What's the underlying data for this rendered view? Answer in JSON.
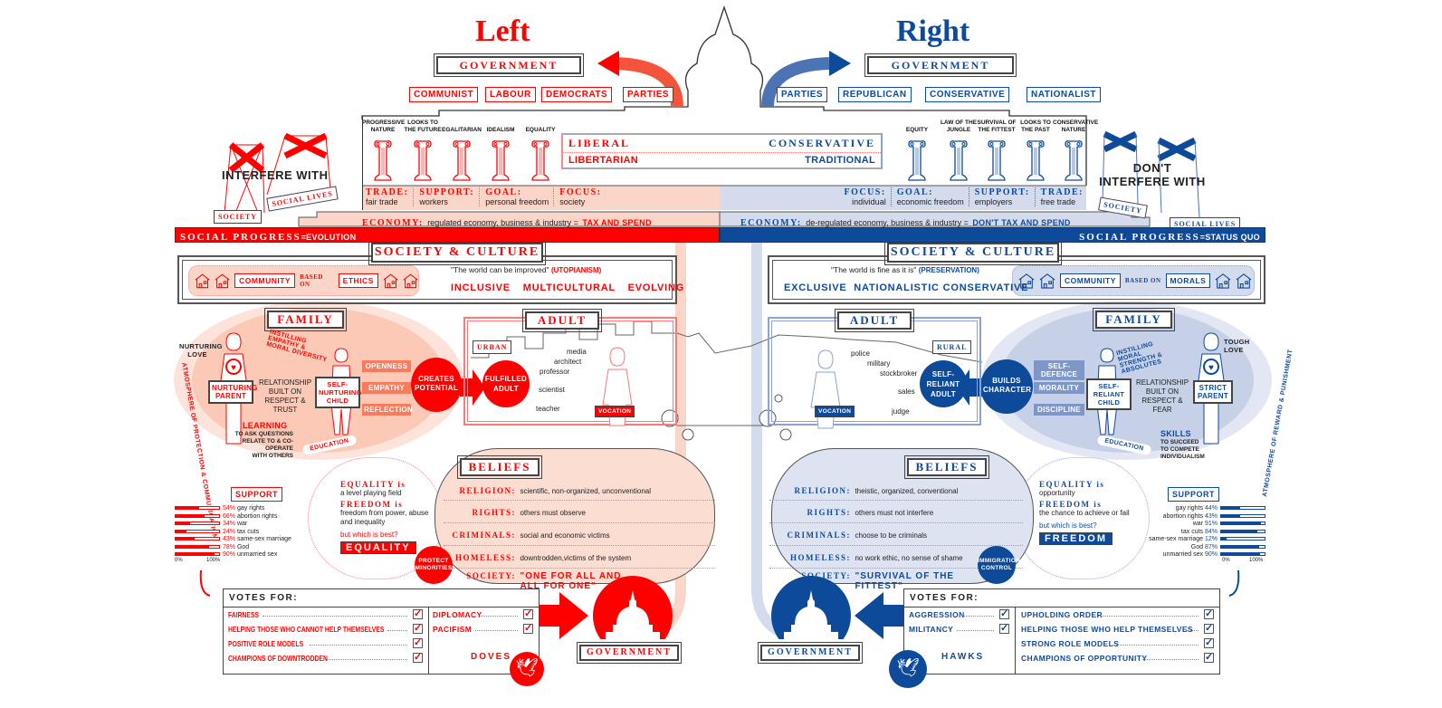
{
  "colors": {
    "left": "#ff0000",
    "left_light": "#fbd5c7",
    "right": "#0d4a9a",
    "right_light": "#d3dbec"
  },
  "left": {
    "title": "Left",
    "government": "GOVERNMENT",
    "parties": [
      "COMMUNIST",
      "LABOUR",
      "DEMOCRATS",
      "PARTIES"
    ],
    "pillars": [
      "PROGRESSIVE NATURE",
      "LOOKS TO THE FUTURE",
      "EGALITARIAN",
      "IDEALISM",
      "EQUALITY"
    ],
    "ideology": [
      "LIBERAL",
      "LIBERTARIAN"
    ],
    "stats": [
      {
        "k": "TRADE:",
        "v": "fair trade"
      },
      {
        "k": "SUPPORT:",
        "v": "workers"
      },
      {
        "k": "GOAL:",
        "v": "personal freedom"
      },
      {
        "k": "FOCUS:",
        "v": "society"
      }
    ],
    "economy_k": "ECONOMY:",
    "economy_v": "regulated economy, business & industry =",
    "economy_tag": "TAX AND SPEND",
    "interfere": "INTERFERE WITH",
    "society_tag": "SOCIETY",
    "social_lives_tag": "SOCIAL LIVES",
    "progress_k": "SOCIAL PROGRESS",
    "progress_v": "=EVOLUTION",
    "society_culture": "SOCIETY & CULTURE",
    "community": "COMMUNITY",
    "based_on": "BASED ON",
    "basis": "ETHICS",
    "quote": "\"The world can be improved\"",
    "quote_tag": "(UTOPIANISM)",
    "traits": [
      "INCLUSIVE",
      "MULTICULTURAL",
      "EVOLVING"
    ],
    "family": "FAMILY",
    "love": "NURTURING LOVE",
    "instilling": "INSTILLING EMPATHY & MORAL DIVERSITY",
    "relationship": "RELATIONSHIP BUILT ON RESPECT & TRUST",
    "parent": "NURTURING PARENT",
    "child": "SELF-NURTURING CHILD",
    "arrows": [
      "OPENNESS",
      "EMPATHY",
      "REFLECTION"
    ],
    "burst": "CREATES POTENTIAL",
    "learning": "LEARNING",
    "learning_sub": [
      "TO ASK QUESTIONS",
      "RELATE TO & CO-OPERATE",
      "WITH OTHERS"
    ],
    "education": "EDUCATION",
    "atmosphere": "ATMOSPHERE OF PROTECTION & COMMUNICATION",
    "adult": "ADULT",
    "setting": "URBAN",
    "adult_type": "FULFILLED ADULT",
    "jobs": [
      "media",
      "architect",
      "professor",
      "scientist",
      "teacher"
    ],
    "vocation": "VOCATION",
    "beliefs": "BELIEFS",
    "belief_rows": [
      {
        "k": "RELIGION:",
        "v": "scientific, non-organized, unconventional"
      },
      {
        "k": "RIGHTS:",
        "v": "others must observe"
      },
      {
        "k": "CRIMINALS:",
        "v": "social and economic victims"
      },
      {
        "k": "HOMELESS:",
        "v": "downtrodden,victims of the system"
      }
    ],
    "society_k": "SOCIETY:",
    "society_v": "\"ONE FOR ALL AND ALL FOR ONE\"",
    "eq_k": "EQUALITY is",
    "eq_v": "a level playing field",
    "fr_k": "FREEDOM is",
    "fr_v": "freedom from power, abuse and inequality",
    "which": "but which is best?",
    "best": "EQUALITY",
    "badge": "PROTECT MINORITIES",
    "support": "SUPPORT",
    "support_items": [
      {
        "pct": 54,
        "label": "54%",
        "name": "gay rights"
      },
      {
        "pct": 66,
        "label": "66%",
        "name": "abortion rights"
      },
      {
        "pct": 34,
        "label": "34%",
        "name": "war"
      },
      {
        "pct": 24,
        "label": "24%",
        "name": "tax cuts"
      },
      {
        "pct": 43,
        "label": "43%",
        "name": "same-sex marriage"
      },
      {
        "pct": 78,
        "label": "78%",
        "name": "God"
      },
      {
        "pct": 90,
        "label": "90%",
        "name": "unmarried sex"
      }
    ],
    "axis": [
      "0%",
      "100%"
    ],
    "votes_for": "VOTES FOR:",
    "votes_a": [
      "FAIRNESS",
      "HELPING THOSE WHO CANNOT HELP THEMSELVES",
      "POSITIVE ROLE MODELS",
      "CHAMPIONS OF DOWNTRODDEN"
    ],
    "votes_b": [
      "DIPLOMACY",
      "PACIFISM"
    ],
    "bird": "DOVES",
    "bottom_gov": "GOVERNMENT"
  },
  "right": {
    "title": "Right",
    "government": "GOVERNMENT",
    "parties": [
      "PARTIES",
      "REPUBLICAN",
      "CONSERVATIVE",
      "NATIONALIST"
    ],
    "pillars": [
      "EQUITY",
      "LAW OF THE JUNGLE",
      "SURVIVAL OF THE FITTEST",
      "LOOKS TO THE PAST",
      "CONSERVATIVE NATURE"
    ],
    "ideology": [
      "CONSERVATIVE",
      "TRADITIONAL"
    ],
    "stats": [
      {
        "k": "FOCUS:",
        "v": "individual"
      },
      {
        "k": "GOAL:",
        "v": "economic freedom"
      },
      {
        "k": "SUPPORT:",
        "v": "employers"
      },
      {
        "k": "TRADE:",
        "v": "free trade"
      }
    ],
    "economy_k": "ECONOMY:",
    "economy_v": "de-regulated economy, business & industry =",
    "economy_tag": "DON'T TAX AND SPEND",
    "interfere": "DON'T INTERFERE WITH",
    "society_tag": "SOCIETY",
    "social_lives_tag": "SOCIAL LIVES",
    "progress_k": "SOCIAL PROGRESS",
    "progress_v": "=STATUS QUO",
    "society_culture": "SOCIETY & CULTURE",
    "community": "COMMUNITY",
    "based_on": "BASED ON",
    "basis": "MORALS",
    "quote": "\"The world is fine as it is\"",
    "quote_tag": "(PRESERVATION)",
    "traits": [
      "EXCLUSIVE",
      "NATIONALISTIC",
      "CONSERVATIVE"
    ],
    "family": "FAMILY",
    "love": "TOUGH LOVE",
    "instilling": "INSTILLING MORAL STRENGTH & ABSOLUTES",
    "relationship": "RELATIONSHIP BUILT ON RESPECT & FEAR",
    "parent": "STRICT PARENT",
    "child": "SELF-RELIANT CHILD",
    "arrows": [
      "SELF-DEFENCE",
      "MORALITY",
      "DISCIPLINE"
    ],
    "burst": "BUILDS CHARACTER",
    "learning": "SKILLS",
    "learning_sub": [
      "TO SUCCEED",
      "TO COMPETE",
      "INDIVIDUALISM"
    ],
    "education": "EDUCATION",
    "atmosphere": "ATMOSPHERE OF REWARD & PUNISHMENT",
    "adult": "ADULT",
    "setting": "RURAL",
    "adult_type": "SELF-RELIANT ADULT",
    "jobs": [
      "police",
      "military",
      "stockbroker",
      "sales",
      "judge"
    ],
    "vocation": "VOCATION",
    "beliefs": "BELIEFS",
    "belief_rows": [
      {
        "k": "RELIGION:",
        "v": "theistic, organized, conventional"
      },
      {
        "k": "RIGHTS:",
        "v": "others must not interfere"
      },
      {
        "k": "CRIMINALS:",
        "v": "choose to be criminals"
      },
      {
        "k": "HOMELESS:",
        "v": "no work ethic, no sense of shame"
      }
    ],
    "society_k": "SOCIETY:",
    "society_v": "\"SURVIVAL OF THE FITTEST\"",
    "eq_k": "EQUALITY is",
    "eq_v": "opportunity",
    "fr_k": "FREEDOM is",
    "fr_v": "the chance to achieve or fail",
    "which": "but which is best?",
    "best": "FREEDOM",
    "badge": "IMMIGRATION CONTROL",
    "support": "SUPPORT",
    "support_items": [
      {
        "pct": 44,
        "label": "44%",
        "name": "gay rights"
      },
      {
        "pct": 43,
        "label": "43%",
        "name": "abortion rights"
      },
      {
        "pct": 91,
        "label": "91%",
        "name": "war"
      },
      {
        "pct": 84,
        "label": "84%",
        "name": "tax cuts"
      },
      {
        "pct": 12,
        "label": "12%",
        "name": "same-sex marriage"
      },
      {
        "pct": 87,
        "label": "87%",
        "name": "God"
      },
      {
        "pct": 90,
        "label": "90%",
        "name": "unmarried sex"
      }
    ],
    "axis": [
      "0%",
      "100%"
    ],
    "votes_for": "VOTES FOR:",
    "votes_a": [
      "AGGRESSION",
      "MILITANCY"
    ],
    "votes_b": [
      "UPHOLDING ORDER",
      "HELPING THOSE WHO HELP THEMSELVES",
      "STRONG ROLE MODELS",
      "CHAMPIONS OF OPPORTUNITY"
    ],
    "bird": "HAWKS",
    "bottom_gov": "GOVERNMENT"
  }
}
